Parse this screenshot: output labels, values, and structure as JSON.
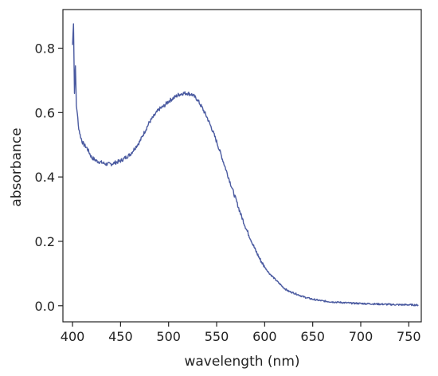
{
  "chart_data": {
    "type": "line",
    "title": "",
    "xlabel": "wavelength (nm)",
    "ylabel": "absorbance",
    "xlim": [
      390,
      763
    ],
    "ylim": [
      -0.05,
      0.92
    ],
    "x_ticks": [
      400,
      450,
      500,
      550,
      600,
      650,
      700,
      750
    ],
    "y_ticks": [
      0.0,
      0.2,
      0.4,
      0.6,
      0.8
    ],
    "x_tick_labels": [
      "400",
      "450",
      "500",
      "550",
      "600",
      "650",
      "700",
      "750"
    ],
    "y_tick_labels": [
      "0.0",
      "0.2",
      "0.4",
      "0.6",
      "0.8"
    ],
    "grid": false,
    "line_color": "#4a5aa0",
    "series": [
      {
        "x": [
          400,
          401,
          402,
          403,
          404,
          405,
          406,
          408,
          410,
          412,
          415,
          420,
          425,
          430,
          435,
          440,
          445,
          450,
          455,
          460,
          465,
          470,
          475,
          480,
          485,
          490,
          495,
          500,
          505,
          510,
          515,
          520,
          525,
          530,
          535,
          540,
          545,
          550,
          555,
          560,
          565,
          570,
          575,
          580,
          585,
          590,
          595,
          600,
          605,
          610,
          615,
          620,
          625,
          630,
          640,
          650,
          660,
          670,
          680,
          690,
          700,
          710,
          720,
          730,
          740,
          750,
          760
        ],
        "y": [
          0.81,
          0.88,
          0.66,
          0.75,
          0.62,
          0.6,
          0.56,
          0.53,
          0.51,
          0.5,
          0.49,
          0.46,
          0.45,
          0.445,
          0.44,
          0.44,
          0.445,
          0.45,
          0.46,
          0.47,
          0.49,
          0.51,
          0.54,
          0.57,
          0.59,
          0.61,
          0.62,
          0.635,
          0.645,
          0.655,
          0.66,
          0.66,
          0.655,
          0.64,
          0.615,
          0.585,
          0.55,
          0.51,
          0.465,
          0.42,
          0.375,
          0.33,
          0.285,
          0.245,
          0.21,
          0.175,
          0.145,
          0.12,
          0.1,
          0.085,
          0.07,
          0.055,
          0.045,
          0.04,
          0.028,
          0.02,
          0.015,
          0.012,
          0.01,
          0.008,
          0.007,
          0.006,
          0.005,
          0.004,
          0.003,
          0.003,
          0.002
        ]
      }
    ]
  }
}
